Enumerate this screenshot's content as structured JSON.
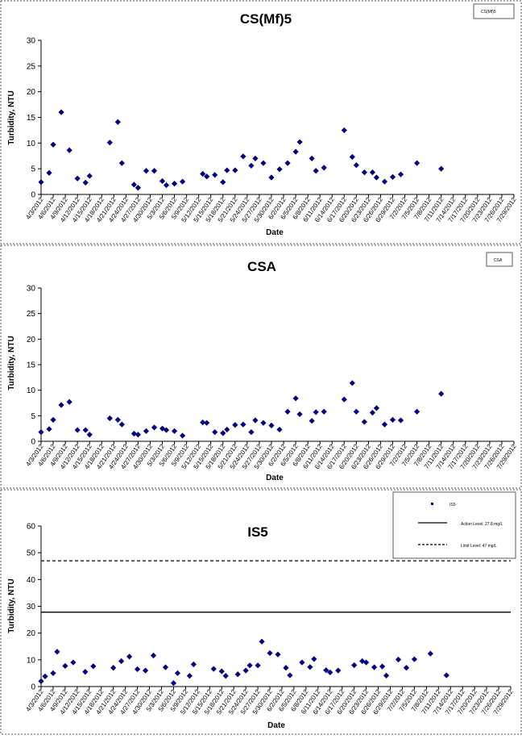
{
  "chart_data": [
    {
      "type": "scatter",
      "title": "CS(Mf)5",
      "xlabel": "Date",
      "ylabel": "Turbidity, NTU",
      "ylim": [
        0,
        30
      ],
      "yticks": [
        0,
        5,
        10,
        15,
        20,
        25,
        30
      ],
      "xticks": [
        "4/3/2012",
        "4/6/2012",
        "4/9/2012",
        "4/12/2012",
        "4/15/2012",
        "4/18/2012",
        "4/21/2012",
        "4/24/2012",
        "4/27/2012",
        "4/30/2012",
        "5/3/2012",
        "5/6/2012",
        "5/9/2012",
        "5/12/2012",
        "5/15/2012",
        "5/18/2012",
        "5/21/2012",
        "5/24/2012",
        "5/27/2012",
        "5/30/2012",
        "6/2/2012",
        "6/5/2012",
        "6/8/2012",
        "6/11/2012",
        "6/14/2012",
        "6/17/2012",
        "6/20/2012",
        "6/23/2012",
        "6/26/2012",
        "6/29/2012",
        "7/2/2012",
        "7/5/2012",
        "7/8/2012",
        "7/11/2012",
        "7/14/2012",
        "7/17/2012",
        "7/20/2012",
        "7/23/2012",
        "7/26/2012",
        "7/29/2012"
      ],
      "legend": {
        "position": "top-right",
        "entries": [
          "CS(Mf)5"
        ]
      },
      "series": [
        {
          "name": "CS(Mf)5",
          "color": "#000080",
          "marker": "diamond",
          "points": [
            [
              "4/3/2012",
              2.4
            ],
            [
              "4/5/2012",
              4.2
            ],
            [
              "4/6/2012",
              9.7
            ],
            [
              "4/8/2012",
              16.0
            ],
            [
              "4/10/2012",
              8.6
            ],
            [
              "4/12/2012",
              3.1
            ],
            [
              "4/14/2012",
              2.3
            ],
            [
              "4/15/2012",
              3.6
            ],
            [
              "4/20/2012",
              10.1
            ],
            [
              "4/22/2012",
              14.1
            ],
            [
              "4/23/2012",
              6.1
            ],
            [
              "4/26/2012",
              1.9
            ],
            [
              "4/27/2012",
              1.3
            ],
            [
              "4/29/2012",
              4.6
            ],
            [
              "5/1/2012",
              4.6
            ],
            [
              "5/3/2012",
              2.6
            ],
            [
              "5/4/2012",
              1.8
            ],
            [
              "5/6/2012",
              2.1
            ],
            [
              "5/8/2012",
              2.5
            ],
            [
              "5/13/2012",
              4.0
            ],
            [
              "5/14/2012",
              3.5
            ],
            [
              "5/16/2012",
              3.8
            ],
            [
              "5/18/2012",
              2.4
            ],
            [
              "5/19/2012",
              4.7
            ],
            [
              "5/21/2012",
              4.7
            ],
            [
              "5/23/2012",
              7.4
            ],
            [
              "5/25/2012",
              5.6
            ],
            [
              "5/26/2012",
              7.0
            ],
            [
              "5/28/2012",
              6.1
            ],
            [
              "5/30/2012",
              3.3
            ],
            [
              "6/1/2012",
              4.9
            ],
            [
              "6/3/2012",
              6.1
            ],
            [
              "6/5/2012",
              8.3
            ],
            [
              "6/6/2012",
              10.2
            ],
            [
              "6/9/2012",
              7.0
            ],
            [
              "6/10/2012",
              4.6
            ],
            [
              "6/12/2012",
              5.2
            ],
            [
              "6/17/2012",
              12.5
            ],
            [
              "6/19/2012",
              7.3
            ],
            [
              "6/20/2012",
              5.7
            ],
            [
              "6/22/2012",
              4.3
            ],
            [
              "6/24/2012",
              4.3
            ],
            [
              "6/25/2012",
              3.3
            ],
            [
              "6/27/2012",
              2.5
            ],
            [
              "6/29/2012",
              3.4
            ],
            [
              "7/1/2012",
              3.9
            ],
            [
              "7/5/2012",
              6.1
            ],
            [
              "7/11/2012",
              5.0
            ]
          ]
        }
      ]
    },
    {
      "type": "scatter",
      "title": "CSA",
      "xlabel": "Date",
      "ylabel": "Turbidity, NTU",
      "ylim": [
        0,
        30
      ],
      "yticks": [
        0,
        5,
        10,
        15,
        20,
        25,
        30
      ],
      "xticks": [
        "4/3/2012",
        "4/6/2012",
        "4/9/2012",
        "4/12/2012",
        "4/15/2012",
        "4/18/2012",
        "4/21/2012",
        "4/24/2012",
        "4/27/2012",
        "4/30/2012",
        "5/3/2012",
        "5/6/2012",
        "5/9/2012",
        "5/12/2012",
        "5/15/2012",
        "5/18/2012",
        "5/21/2012",
        "5/24/2012",
        "5/27/2012",
        "5/30/2012",
        "6/2/2012",
        "6/5/2012",
        "6/8/2012",
        "6/11/2012",
        "6/14/2012",
        "6/17/2012",
        "6/20/2012",
        "6/23/2012",
        "6/26/2012",
        "6/29/2012",
        "7/2/2012",
        "7/5/2012",
        "7/8/2012",
        "7/11/2012",
        "7/14/2012",
        "7/17/2012",
        "7/20/2012",
        "7/23/2012",
        "7/26/2012",
        "7/29/2012"
      ],
      "legend": {
        "position": "top-right",
        "entries": [
          "CSA"
        ]
      },
      "series": [
        {
          "name": "CSA",
          "color": "#000080",
          "marker": "diamond",
          "points": [
            [
              "4/3/2012",
              1.8
            ],
            [
              "4/5/2012",
              2.4
            ],
            [
              "4/6/2012",
              4.2
            ],
            [
              "4/8/2012",
              7.1
            ],
            [
              "4/10/2012",
              7.7
            ],
            [
              "4/12/2012",
              2.2
            ],
            [
              "4/14/2012",
              2.2
            ],
            [
              "4/15/2012",
              1.3
            ],
            [
              "4/20/2012",
              4.5
            ],
            [
              "4/22/2012",
              4.2
            ],
            [
              "4/23/2012",
              3.3
            ],
            [
              "4/26/2012",
              1.5
            ],
            [
              "4/27/2012",
              1.3
            ],
            [
              "4/29/2012",
              2.0
            ],
            [
              "5/1/2012",
              2.7
            ],
            [
              "5/3/2012",
              2.5
            ],
            [
              "5/4/2012",
              2.2
            ],
            [
              "5/6/2012",
              2.0
            ],
            [
              "5/8/2012",
              1.1
            ],
            [
              "5/13/2012",
              3.7
            ],
            [
              "5/14/2012",
              3.6
            ],
            [
              "5/16/2012",
              1.8
            ],
            [
              "5/18/2012",
              1.6
            ],
            [
              "5/19/2012",
              2.3
            ],
            [
              "5/21/2012",
              3.2
            ],
            [
              "5/23/2012",
              3.3
            ],
            [
              "5/25/2012",
              1.8
            ],
            [
              "5/26/2012",
              4.1
            ],
            [
              "5/28/2012",
              3.6
            ],
            [
              "5/30/2012",
              3.1
            ],
            [
              "6/1/2012",
              2.3
            ],
            [
              "6/3/2012",
              5.8
            ],
            [
              "6/5/2012",
              8.4
            ],
            [
              "6/6/2012",
              5.3
            ],
            [
              "6/9/2012",
              4.0
            ],
            [
              "6/10/2012",
              5.7
            ],
            [
              "6/12/2012",
              5.8
            ],
            [
              "6/17/2012",
              8.2
            ],
            [
              "6/19/2012",
              11.4
            ],
            [
              "6/20/2012",
              5.8
            ],
            [
              "6/22/2012",
              3.8
            ],
            [
              "6/24/2012",
              5.6
            ],
            [
              "6/25/2012",
              6.5
            ],
            [
              "6/27/2012",
              3.3
            ],
            [
              "6/29/2012",
              4.2
            ],
            [
              "7/1/2012",
              4.1
            ],
            [
              "7/5/2012",
              5.8
            ],
            [
              "7/11/2012",
              9.3
            ]
          ]
        }
      ]
    },
    {
      "type": "scatter",
      "title": "IS5",
      "xlabel": "Date",
      "ylabel": "Turbidity, NTU",
      "ylim": [
        0,
        60
      ],
      "yticks": [
        0,
        10,
        20,
        30,
        40,
        50,
        60
      ],
      "xticks": [
        "4/3/2012",
        "4/6/2012",
        "4/9/2012",
        "4/12/2012",
        "4/15/2012",
        "4/18/2012",
        "4/21/2012",
        "4/24/2012",
        "4/27/2012",
        "4/30/2012",
        "5/3/2012",
        "5/6/2012",
        "5/9/2012",
        "5/12/2012",
        "5/15/2012",
        "5/18/2012",
        "5/21/2012",
        "5/24/2012",
        "5/27/2012",
        "5/30/2012",
        "6/2/2012",
        "6/5/2012",
        "6/8/2012",
        "6/11/2012",
        "6/14/2012",
        "6/17/2012",
        "6/20/2012",
        "6/23/2012",
        "6/26/2012",
        "6/29/2012",
        "7/2/2012",
        "7/5/2012",
        "7/8/2012",
        "7/11/2012",
        "7/14/2012",
        "7/17/2012",
        "7/20/2012",
        "7/23/2012",
        "7/26/2012",
        "7/29/2012"
      ],
      "legend": {
        "position": "top-right",
        "entries": [
          "IS5",
          "Action Level: 27.8 mg/L",
          "Limit Level: 47 mg/L"
        ]
      },
      "series": [
        {
          "name": "IS5",
          "color": "#000080",
          "marker": "diamond",
          "points": [
            [
              "4/3/2012",
              2.0
            ],
            [
              "4/4/2012",
              3.8
            ],
            [
              "4/6/2012",
              5.0
            ],
            [
              "4/7/2012",
              13.0
            ],
            [
              "4/9/2012",
              7.7
            ],
            [
              "4/11/2012",
              9.0
            ],
            [
              "4/14/2012",
              5.5
            ],
            [
              "4/16/2012",
              7.6
            ],
            [
              "4/21/2012",
              7.0
            ],
            [
              "4/23/2012",
              9.5
            ],
            [
              "4/25/2012",
              11.2
            ],
            [
              "4/27/2012",
              6.5
            ],
            [
              "4/29/2012",
              6.0
            ],
            [
              "5/1/2012",
              11.6
            ],
            [
              "5/4/2012",
              7.2
            ],
            [
              "5/6/2012",
              1.3
            ],
            [
              "5/7/2012",
              5.0
            ],
            [
              "5/10/2012",
              4.0
            ],
            [
              "5/11/2012",
              8.3
            ],
            [
              "5/16/2012",
              6.6
            ],
            [
              "5/18/2012",
              5.7
            ],
            [
              "5/19/2012",
              4.0
            ],
            [
              "5/22/2012",
              4.6
            ],
            [
              "5/24/2012",
              6.0
            ],
            [
              "5/25/2012",
              7.9
            ],
            [
              "5/27/2012",
              7.9
            ],
            [
              "5/28/2012",
              16.8
            ],
            [
              "5/30/2012",
              12.5
            ],
            [
              "6/1/2012",
              12.0
            ],
            [
              "6/3/2012",
              7.0
            ],
            [
              "6/4/2012",
              4.2
            ],
            [
              "6/7/2012",
              9.0
            ],
            [
              "6/9/2012",
              7.3
            ],
            [
              "6/10/2012",
              10.3
            ],
            [
              "6/13/2012",
              6.1
            ],
            [
              "6/14/2012",
              5.3
            ],
            [
              "6/16/2012",
              6.0
            ],
            [
              "6/20/2012",
              8.0
            ],
            [
              "6/22/2012",
              9.5
            ],
            [
              "6/23/2012",
              9.0
            ],
            [
              "6/25/2012",
              7.2
            ],
            [
              "6/27/2012",
              7.5
            ],
            [
              "6/28/2012",
              4.1
            ],
            [
              "7/1/2012",
              10.1
            ],
            [
              "7/3/2012",
              7.0
            ],
            [
              "7/5/2012",
              10.2
            ],
            [
              "7/9/2012",
              12.3
            ],
            [
              "7/13/2012",
              4.2
            ]
          ]
        }
      ],
      "reference_lines": [
        {
          "label": "Action Level: 27.8 mg/L",
          "value": 27.8,
          "style": "solid"
        },
        {
          "label": "Limit Level: 47 mg/L",
          "value": 47,
          "style": "dashed"
        }
      ]
    }
  ]
}
